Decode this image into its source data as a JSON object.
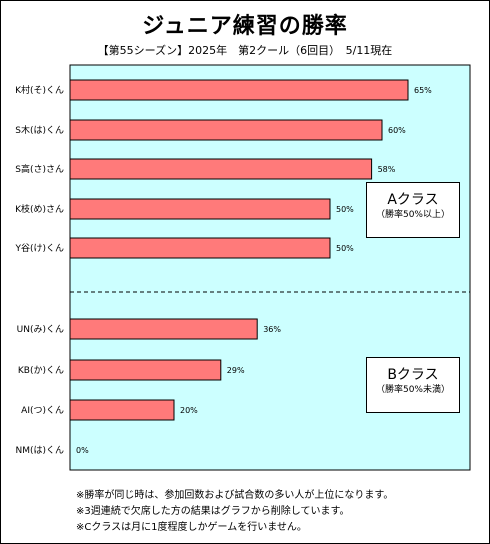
{
  "title": "ジュニア練習の勝率",
  "subtitle": "【第55シーズン】2025年　第2クール（6回目）　5/11現在",
  "colors": {
    "plot_bg": "#ccffff",
    "bar": "#ff7a7a",
    "bar_border": "#000000"
  },
  "chart_data": {
    "type": "bar",
    "orientation": "horizontal",
    "categories": [
      "K村(そ)くん",
      "S木(は)くん",
      "S高(さ)さん",
      "K枝(め)さん",
      "Y谷(け)くん",
      "",
      "UN(み)くん",
      "KB(か)くん",
      "AI(つ)くん",
      "NM(は)くん"
    ],
    "values": [
      65,
      60,
      58,
      50,
      50,
      null,
      36,
      29,
      20,
      0
    ],
    "value_labels": [
      "65%",
      "60%",
      "58%",
      "50%",
      "50%",
      "",
      "36%",
      "29%",
      "20%",
      "0%"
    ],
    "xlim": [
      0,
      100
    ],
    "grid": false,
    "divider_after_index": 4
  },
  "groups": [
    {
      "title": "Aクラス",
      "note": "（勝率50%以上）"
    },
    {
      "title": "Bクラス",
      "note": "（勝率50%未満）"
    }
  ],
  "notes": [
    "※勝率が同じ時は、参加回数および試合数の多い人が上位になります。",
    "※3週連続で欠席した方の結果はグラフから削除しています。",
    "※Cクラスは月に1度程度しかゲームを行いません。"
  ]
}
